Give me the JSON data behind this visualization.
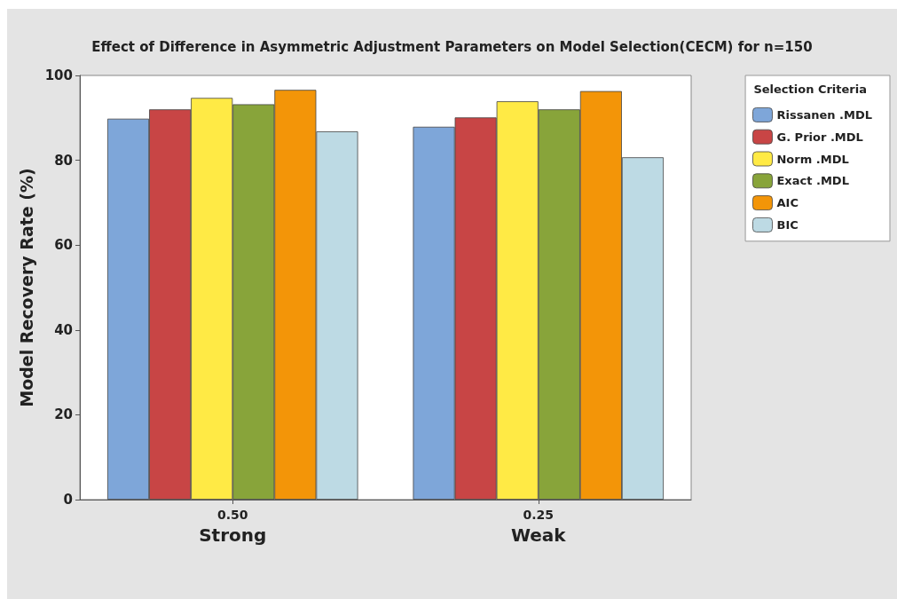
{
  "chart_data": {
    "type": "bar",
    "title": "Effect of Difference in Asymmetric Adjustment Parameters on Model Selection(CECM) for n=150",
    "categories": [
      "0.50\nStrong",
      "0.25\nWeak"
    ],
    "ylabel": "Model Recovery Rate (%)",
    "legend_title": "Selection Criteria",
    "series": [
      {
        "name": "Rissanen .MDL",
        "color": "#7ea6d9",
        "values": [
          89.8,
          87.9
        ]
      },
      {
        "name": "G. Prior .MDL",
        "color": "#c84545",
        "values": [
          92.0,
          90.1
        ]
      },
      {
        "name": "Norm .MDL",
        "color": "#ffea45",
        "values": [
          94.7,
          93.9
        ]
      },
      {
        "name": "Exact .MDL",
        "color": "#88a43a",
        "values": [
          93.2,
          92.0
        ]
      },
      {
        "name": "AIC",
        "color": "#f39508",
        "values": [
          96.6,
          96.3
        ]
      },
      {
        "name": "BIC",
        "color": "#bddae4",
        "values": [
          86.8,
          80.7
        ]
      }
    ],
    "ylim": [
      0,
      100
    ],
    "yticks": [
      0,
      20,
      40,
      60,
      80,
      100
    ],
    "grid": false,
    "legend": "right"
  }
}
